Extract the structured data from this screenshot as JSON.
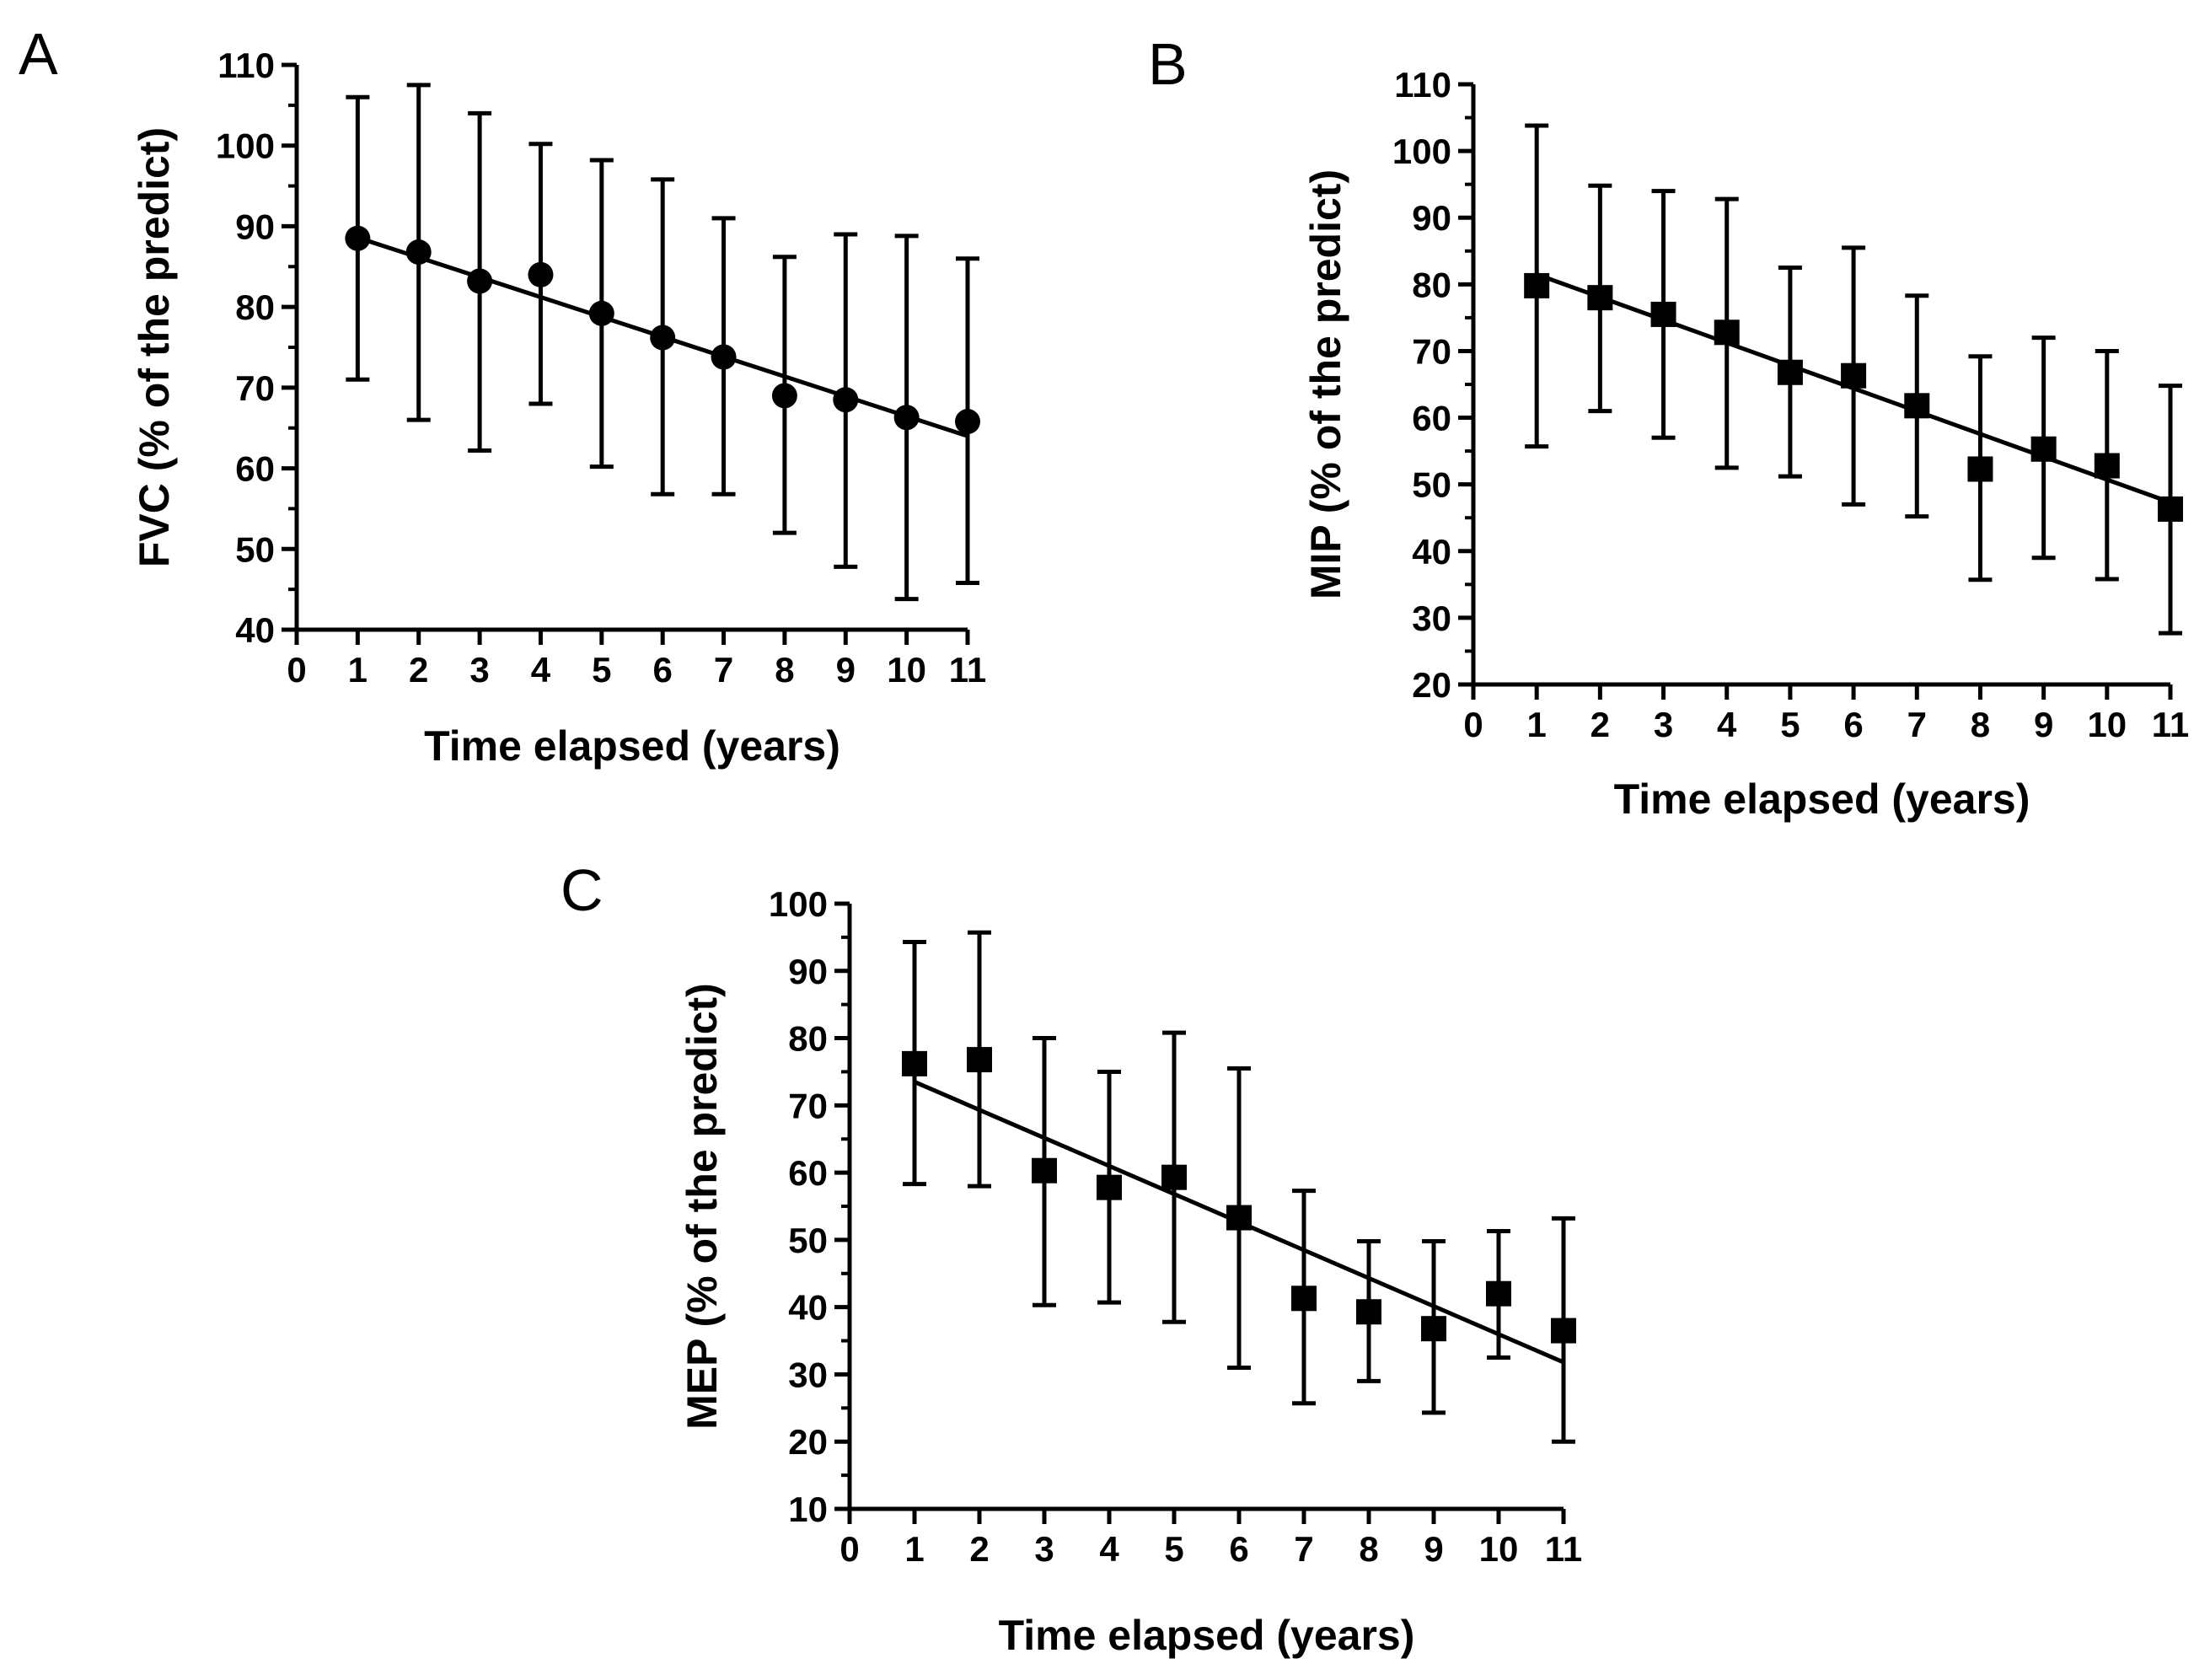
{
  "chart_data": [
    {
      "type": "scatter",
      "panel_label": "A",
      "xlabel": "Time elapsed (years)",
      "ylabel": "FVC (% of the predict)",
      "xlim": [
        0,
        11
      ],
      "ylim": [
        40,
        110
      ],
      "xticks": [
        "0",
        "1",
        "2",
        "3",
        "4",
        "5",
        "6",
        "7",
        "8",
        "9",
        "10",
        "11"
      ],
      "yticks": [
        "40",
        "50",
        "60",
        "70",
        "80",
        "90",
        "100",
        "110"
      ],
      "marker": "circle",
      "x": [
        1,
        2,
        3,
        4,
        5,
        6,
        7,
        8,
        9,
        10,
        11
      ],
      "y": [
        88.5,
        86.8,
        83.2,
        84.0,
        79.2,
        76.2,
        73.8,
        69.0,
        68.5,
        66.3,
        65.8
      ],
      "err_low": [
        71.0,
        66.0,
        62.2,
        68.0,
        60.2,
        56.8,
        56.8,
        52.0,
        47.8,
        43.8,
        45.8
      ],
      "err_high": [
        106.0,
        107.5,
        104.0,
        100.2,
        98.2,
        95.8,
        91.0,
        86.2,
        89.0,
        88.8,
        86.0
      ],
      "fit": {
        "x": [
          1,
          11
        ],
        "y": [
          88.6,
          64.0
        ]
      }
    },
    {
      "type": "scatter",
      "panel_label": "B",
      "xlabel": "Time elapsed (years)",
      "ylabel": "MIP (% of the predict)",
      "xlim": [
        0,
        11
      ],
      "ylim": [
        20,
        110
      ],
      "xticks": [
        "0",
        "1",
        "2",
        "3",
        "4",
        "5",
        "6",
        "7",
        "8",
        "9",
        "10",
        "11"
      ],
      "yticks": [
        "20",
        "30",
        "40",
        "50",
        "60",
        "70",
        "80",
        "90",
        "100",
        "110"
      ],
      "marker": "square",
      "x": [
        1,
        2,
        3,
        4,
        5,
        6,
        7,
        8,
        9,
        10,
        11
      ],
      "y": [
        79.8,
        78.0,
        75.5,
        72.8,
        66.8,
        66.3,
        61.8,
        52.3,
        55.3,
        52.8,
        46.3
      ],
      "err_low": [
        55.7,
        61.0,
        57.0,
        52.5,
        51.2,
        47.0,
        45.2,
        35.7,
        39.0,
        35.8,
        27.7
      ],
      "err_high": [
        103.8,
        94.8,
        94.0,
        92.8,
        82.5,
        85.5,
        78.3,
        69.2,
        72.0,
        70.0,
        64.8
      ],
      "fit": {
        "x": [
          1,
          11
        ],
        "y": [
          81.5,
          47.3
        ]
      }
    },
    {
      "type": "scatter",
      "panel_label": "C",
      "xlabel": "Time elapsed (years)",
      "ylabel": "MEP (% of the predict)",
      "xlim": [
        0,
        11
      ],
      "ylim": [
        10,
        100
      ],
      "xticks": [
        "0",
        "1",
        "2",
        "3",
        "4",
        "5",
        "6",
        "7",
        "8",
        "9",
        "10",
        "11"
      ],
      "yticks": [
        "10",
        "20",
        "30",
        "40",
        "50",
        "60",
        "70",
        "80",
        "90",
        "100"
      ],
      "marker": "square",
      "x": [
        1,
        2,
        3,
        4,
        5,
        6,
        7,
        8,
        9,
        10,
        11
      ],
      "y": [
        76.2,
        76.8,
        60.3,
        57.8,
        59.3,
        53.3,
        41.3,
        39.3,
        36.8,
        42.0,
        36.5
      ],
      "err_low": [
        58.3,
        58.0,
        40.3,
        40.7,
        37.8,
        31.0,
        25.7,
        29.0,
        24.3,
        32.5,
        20.0
      ],
      "err_high": [
        94.3,
        95.7,
        80.0,
        75.0,
        80.8,
        75.5,
        57.3,
        49.8,
        49.8,
        51.3,
        53.2
      ],
      "fit": {
        "x": [
          1,
          11
        ],
        "y": [
          73.5,
          31.8
        ]
      }
    }
  ]
}
